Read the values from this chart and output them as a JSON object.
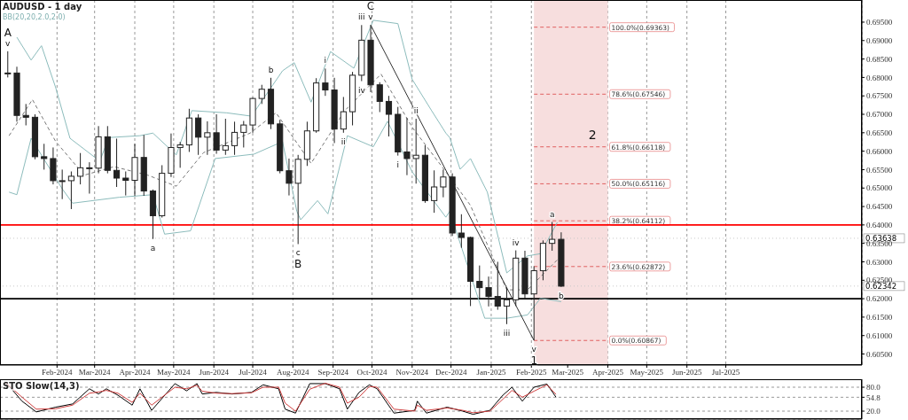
{
  "chart_data": [
    {
      "type": "candlestick",
      "title": "AUDUSD - 1 day",
      "subtitle": "BB(20,20,2.0,2.0)",
      "color": "#222222",
      "x": [
        "2023-12-25",
        "2024-01-01",
        "2024-01-08",
        "2024-01-15",
        "2024-01-22",
        "2024-01-29",
        "2024-02-05",
        "2024-02-12",
        "2024-02-19",
        "2024-02-26",
        "2024-03-04",
        "2024-03-11",
        "2024-03-18",
        "2024-03-25",
        "2024-04-01",
        "2024-04-08",
        "2024-04-15",
        "2024-04-22",
        "2024-04-29",
        "2024-05-06",
        "2024-05-13",
        "2024-05-20",
        "2024-05-27",
        "2024-06-03",
        "2024-06-10",
        "2024-06-17",
        "2024-06-24",
        "2024-07-01",
        "2024-07-08",
        "2024-07-15",
        "2024-07-22",
        "2024-07-29",
        "2024-08-05",
        "2024-08-12",
        "2024-08-19",
        "2024-08-26",
        "2024-09-02",
        "2024-09-09",
        "2024-09-16",
        "2024-09-23",
        "2024-09-30",
        "2024-10-07",
        "2024-10-14",
        "2024-10-21",
        "2024-10-28",
        "2024-11-04",
        "2024-11-11",
        "2024-11-18",
        "2024-11-25",
        "2024-12-02",
        "2024-12-09",
        "2024-12-16",
        "2024-12-23",
        "2024-12-30",
        "2025-01-06",
        "2025-01-13",
        "2025-01-20",
        "2025-01-27",
        "2025-02-03",
        "2025-02-10",
        "2025-02-17",
        "2025-02-24"
      ],
      "ohlc": [
        [
          0.681,
          0.6871,
          0.68,
          0.6812
        ],
        [
          0.6812,
          0.6829,
          0.668,
          0.6697
        ],
        [
          0.6697,
          0.6728,
          0.667,
          0.6692
        ],
        [
          0.6692,
          0.67,
          0.6578,
          0.6585
        ],
        [
          0.6585,
          0.662,
          0.655,
          0.658
        ],
        [
          0.658,
          0.661,
          0.651,
          0.652
        ],
        [
          0.652,
          0.655,
          0.647,
          0.652
        ],
        [
          0.652,
          0.6545,
          0.6443,
          0.6532
        ],
        [
          0.6532,
          0.6595,
          0.651,
          0.6555
        ],
        [
          0.6555,
          0.657,
          0.6485,
          0.6554
        ],
        [
          0.6554,
          0.6668,
          0.654,
          0.6639
        ],
        [
          0.6639,
          0.6668,
          0.654,
          0.6548
        ],
        [
          0.6548,
          0.6634,
          0.6503,
          0.6527
        ],
        [
          0.6527,
          0.6545,
          0.648,
          0.6521
        ],
        [
          0.6521,
          0.662,
          0.6479,
          0.6583
        ],
        [
          0.6583,
          0.6644,
          0.6479,
          0.6492
        ],
        [
          0.6492,
          0.6496,
          0.6362,
          0.6425
        ],
        [
          0.6425,
          0.6562,
          0.642,
          0.654
        ],
        [
          0.654,
          0.6648,
          0.653,
          0.661
        ],
        [
          0.661,
          0.6625,
          0.6555,
          0.6617
        ],
        [
          0.6617,
          0.6715,
          0.6598,
          0.669
        ],
        [
          0.669,
          0.67,
          0.659,
          0.6638
        ],
        [
          0.6638,
          0.6681,
          0.659,
          0.665
        ],
        [
          0.665,
          0.67,
          0.6593,
          0.6603
        ],
        [
          0.6603,
          0.6688,
          0.659,
          0.6615
        ],
        [
          0.6615,
          0.668,
          0.659,
          0.6651
        ],
        [
          0.6651,
          0.6682,
          0.661,
          0.6671
        ],
        [
          0.6671,
          0.6745,
          0.665,
          0.6743
        ],
        [
          0.6743,
          0.678,
          0.6728,
          0.6768
        ],
        [
          0.6768,
          0.6799,
          0.666,
          0.6674
        ],
        [
          0.6674,
          0.6685,
          0.654,
          0.6547
        ],
        [
          0.6547,
          0.658,
          0.648,
          0.6513
        ],
        [
          0.6513,
          0.659,
          0.6348,
          0.6578
        ],
        [
          0.6578,
          0.668,
          0.656,
          0.6655
        ],
        [
          0.6655,
          0.6798,
          0.665,
          0.6785
        ],
        [
          0.6785,
          0.6824,
          0.675,
          0.6766
        ],
        [
          0.6766,
          0.6799,
          0.6622,
          0.666
        ],
        [
          0.666,
          0.6747,
          0.665,
          0.6707
        ],
        [
          0.6707,
          0.6815,
          0.667,
          0.6806
        ],
        [
          0.6806,
          0.6942,
          0.679,
          0.6901
        ],
        [
          0.6901,
          0.6942,
          0.676,
          0.678
        ],
        [
          0.678,
          0.6787,
          0.6706,
          0.6735
        ],
        [
          0.6735,
          0.675,
          0.664,
          0.67
        ],
        [
          0.67,
          0.672,
          0.6588,
          0.6598
        ],
        [
          0.6598,
          0.669,
          0.6535,
          0.658
        ],
        [
          0.658,
          0.6688,
          0.6512,
          0.6589
        ],
        [
          0.6589,
          0.6616,
          0.646,
          0.6466
        ],
        [
          0.6466,
          0.6548,
          0.6433,
          0.6503
        ],
        [
          0.6503,
          0.655,
          0.6475,
          0.653
        ],
        [
          0.653,
          0.654,
          0.637,
          0.6378
        ],
        [
          0.6378,
          0.6429,
          0.6338,
          0.6366
        ],
        [
          0.6366,
          0.6368,
          0.618,
          0.6247
        ],
        [
          0.6247,
          0.629,
          0.62,
          0.623
        ],
        [
          0.623,
          0.626,
          0.6179,
          0.6206
        ],
        [
          0.6206,
          0.63,
          0.617,
          0.618
        ],
        [
          0.618,
          0.623,
          0.6131,
          0.6197
        ],
        [
          0.6197,
          0.6331,
          0.618,
          0.631
        ],
        [
          0.631,
          0.633,
          0.62,
          0.6213
        ],
        [
          0.6213,
          0.6288,
          0.6087,
          0.6276
        ],
        [
          0.6276,
          0.6358,
          0.625,
          0.635
        ],
        [
          0.635,
          0.6408,
          0.633,
          0.6361
        ],
        [
          0.6361,
          0.638,
          0.6232,
          0.6234
        ]
      ],
      "series": [
        {
          "type": "line",
          "color": "#8cbcbc",
          "line_style": "solid",
          "x": [
            "2024-01-01",
            "2024-01-12",
            "2024-01-20",
            "2024-01-31",
            "2024-02-11",
            "2024-03-05",
            "2024-03-12",
            "2024-04-05",
            "2024-04-15",
            "2024-05-03",
            "2024-05-15",
            "2024-06-11",
            "2024-06-30",
            "2024-07-24",
            "2024-08-02",
            "2024-08-15",
            "2024-08-30",
            "2024-09-17",
            "2024-10-02",
            "2024-10-21",
            "2024-11-01",
            "2024-11-16",
            "2024-11-27",
            "2024-11-30",
            "2024-12-08",
            "2024-12-16",
            "2024-12-29",
            "2025-01-13",
            "2025-01-29",
            "2025-02-08",
            "2025-02-21"
          ],
          "values": [
            0.6909,
            0.6847,
            0.6886,
            0.6772,
            0.6635,
            0.6573,
            0.6637,
            0.6642,
            0.6649,
            0.659,
            0.671,
            0.6704,
            0.6695,
            0.6818,
            0.684,
            0.6733,
            0.687,
            0.6825,
            0.6955,
            0.6946,
            0.6795,
            0.671,
            0.6649,
            0.6637,
            0.6551,
            0.658,
            0.6489,
            0.627,
            0.6316,
            0.6322,
            0.6407
          ]
        },
        {
          "type": "line",
          "color": "#777777",
          "line_style": "dashed",
          "x": [
            "2023-12-26",
            "2024-01-13",
            "2024-01-31",
            "2024-02-22",
            "2024-03-16",
            "2024-04-11",
            "2024-05-03",
            "2024-05-24",
            "2024-06-29",
            "2024-07-19",
            "2024-08-15",
            "2024-09-10",
            "2024-10-08",
            "2024-11-01",
            "2024-11-27",
            "2024-12-16",
            "2025-01-13",
            "2025-01-29",
            "2025-02-24"
          ],
          "values": [
            0.6642,
            0.674,
            0.6626,
            0.6535,
            0.6558,
            0.6535,
            0.6505,
            0.6596,
            0.6649,
            0.6704,
            0.6567,
            0.671,
            0.6809,
            0.6665,
            0.6544,
            0.6453,
            0.6224,
            0.6224,
            0.6316
          ]
        },
        {
          "type": "line",
          "color": "#8cbcbc",
          "line_style": "solid",
          "x": [
            "2023-12-26",
            "2024-01-01",
            "2024-01-12",
            "2024-02-05",
            "2024-02-13",
            "2024-03-20",
            "2024-04-15",
            "2024-04-24",
            "2024-05-14",
            "2024-06-02",
            "2024-07-02",
            "2024-07-24",
            "2024-08-04",
            "2024-08-07",
            "2024-08-20",
            "2024-08-28",
            "2024-09-12",
            "2024-10-02",
            "2024-10-13",
            "2024-11-01",
            "2024-11-27",
            "2024-11-30",
            "2024-12-27",
            "2025-01-13",
            "2025-01-29",
            "2025-02-08",
            "2025-02-24"
          ],
          "values": [
            0.6489,
            0.6482,
            0.6635,
            0.6498,
            0.6459,
            0.6475,
            0.6482,
            0.6375,
            0.6384,
            0.658,
            0.6592,
            0.6626,
            0.6437,
            0.6414,
            0.6466,
            0.643,
            0.6642,
            0.6612,
            0.6681,
            0.6544,
            0.6421,
            0.6437,
            0.6147,
            0.6147,
            0.6156,
            0.6201,
            0.6192
          ]
        },
        {
          "type": "line",
          "color": "#333333",
          "line_style": "solid",
          "x": [
            "2024-09-30",
            "2025-02-03"
          ],
          "values": [
            0.6942,
            0.6087
          ]
        }
      ],
      "xlim": [
        "2023-12-19",
        "2025-10-14"
      ],
      "xticks": [
        {
          "value": "2024-02-01",
          "label": "Feb-2024"
        },
        {
          "value": "2024-03-01",
          "label": "Mar-2024"
        },
        {
          "value": "2024-04-01",
          "label": "Apr-2024"
        },
        {
          "value": "2024-05-01",
          "label": "May-2024"
        },
        {
          "value": "2024-06-01",
          "label": "Jun-2024"
        },
        {
          "value": "2024-07-01",
          "label": "Jul-2024"
        },
        {
          "value": "2024-08-01",
          "label": "Aug-2024"
        },
        {
          "value": "2024-09-01",
          "label": "Sep-2024"
        },
        {
          "value": "2024-10-01",
          "label": "Oct-2024"
        },
        {
          "value": "2024-11-01",
          "label": "Nov-2024"
        },
        {
          "value": "2024-12-01",
          "label": "Dec-2024"
        },
        {
          "value": "2025-01-01",
          "label": "Jan-2025"
        },
        {
          "value": "2025-02-01",
          "label": "Feb-2025"
        },
        {
          "value": "2025-03-01",
          "label": "Mar-2025"
        },
        {
          "value": "2025-04-01",
          "label": "Apr-2025"
        },
        {
          "value": "2025-05-01",
          "label": "May-2025"
        },
        {
          "value": "2025-06-01",
          "label": "Jun-2025"
        },
        {
          "value": "2025-07-01",
          "label": "Jul-2025"
        }
      ],
      "ylim": [
        0.602,
        0.701
      ],
      "yticks": [
        {
          "value": 0.605,
          "label": "0.60500"
        },
        {
          "value": 0.61,
          "label": "0.61000"
        },
        {
          "value": 0.615,
          "label": "0.61500"
        },
        {
          "value": 0.62,
          "label": "0.62000"
        },
        {
          "value": 0.625,
          "label": "0.62500"
        },
        {
          "value": 0.63,
          "label": "0.63000"
        },
        {
          "value": 0.635,
          "label": "0.63500"
        },
        {
          "value": 0.64,
          "label": "0.64000"
        },
        {
          "value": 0.645,
          "label": "0.64500"
        },
        {
          "value": 0.65,
          "label": "0.65000"
        },
        {
          "value": 0.655,
          "label": "0.65500"
        },
        {
          "value": 0.66,
          "label": "0.66000"
        },
        {
          "value": 0.665,
          "label": "0.66500"
        },
        {
          "value": 0.67,
          "label": "0.67000"
        },
        {
          "value": 0.675,
          "label": "0.67500"
        },
        {
          "value": 0.68,
          "label": "0.68000"
        },
        {
          "value": 0.685,
          "label": "0.68500"
        },
        {
          "value": 0.69,
          "label": "0.69000"
        },
        {
          "value": 0.695,
          "label": "0.69500"
        }
      ],
      "grid": "x",
      "bands": [
        {
          "axis": "x",
          "from": "2025-02-03",
          "to": "2025-04-01",
          "color": "#f7dede"
        }
      ],
      "ref_lines": [
        {
          "axis": "y",
          "value": 0.69363,
          "label": "100.0%(0.69363)",
          "color": "#e06060",
          "line_style": "dashed"
        },
        {
          "axis": "y",
          "value": 0.67546,
          "label": "78.6%(0.67546)",
          "color": "#e06060",
          "line_style": "dashed"
        },
        {
          "axis": "y",
          "value": 0.66118,
          "label": "61.8%(0.66118)",
          "color": "#e06060",
          "line_style": "dashed"
        },
        {
          "axis": "y",
          "value": 0.65116,
          "label": "50.0%(0.65116)",
          "color": "#e06060",
          "line_style": "dashed"
        },
        {
          "axis": "y",
          "value": 0.64112,
          "label": "38.2%(0.64112)",
          "color": "#e06060",
          "line_style": "dashed"
        },
        {
          "axis": "y",
          "value": 0.62872,
          "label": "23.6%(0.62872)",
          "color": "#e06060",
          "line_style": "dashed"
        },
        {
          "axis": "y",
          "value": 0.60867,
          "label": "0.0%(0.60867)",
          "color": "#e06060",
          "line_style": "dashed"
        },
        {
          "axis": "y",
          "value": 0.64,
          "color": "#ff0000",
          "line_style": "solid"
        },
        {
          "axis": "y",
          "value": 0.62,
          "color": "#000000",
          "line_style": "solid"
        },
        {
          "axis": "y",
          "value": 0.63638,
          "label": "0.63638",
          "color": "#c8c8c8",
          "line_style": "dotted"
        },
        {
          "axis": "y",
          "value": 0.62342,
          "label": "0.62342",
          "color": "#c8c8c8",
          "line_style": "dotted"
        }
      ],
      "annotations": [
        {
          "text": "v",
          "x": "2023-12-25",
          "y": 0.6871
        },
        {
          "text": "A",
          "x": "2023-12-25",
          "y": 0.6871
        },
        {
          "text": "a",
          "x": "2024-04-15",
          "y": 0.6362
        },
        {
          "text": "b",
          "x": "2024-07-15",
          "y": 0.6799
        },
        {
          "text": "c",
          "x": "2024-08-05",
          "y": 0.6348
        },
        {
          "text": "B",
          "x": "2024-08-05",
          "y": 0.6348
        },
        {
          "text": "i",
          "x": "2024-08-26",
          "y": 0.6824
        },
        {
          "text": "ii",
          "x": "2024-09-09",
          "y": 0.665
        },
        {
          "text": "iii",
          "x": "2024-09-23",
          "y": 0.6942
        },
        {
          "text": "iv",
          "x": "2024-09-23",
          "y": 0.679
        },
        {
          "text": "v",
          "x": "2024-09-30",
          "y": 0.6942
        },
        {
          "text": "C",
          "x": "2024-09-30",
          "y": 0.6942
        },
        {
          "text": "i",
          "x": "2024-10-21",
          "y": 0.6588
        },
        {
          "text": "ii",
          "x": "2024-11-04",
          "y": 0.6688
        },
        {
          "text": "iii",
          "x": "2025-01-13",
          "y": 0.6131
        },
        {
          "text": "iv",
          "x": "2025-01-20",
          "y": 0.6331
        },
        {
          "text": "v",
          "x": "2025-02-03",
          "y": 0.6087
        },
        {
          "text": "1",
          "x": "2025-02-03",
          "y": 0.6087
        },
        {
          "text": "a",
          "x": "2025-02-17",
          "y": 0.6408
        },
        {
          "text": "b",
          "x": "2025-02-24",
          "y": 0.6232
        },
        "2"
      ]
    },
    {
      "type": "line",
      "title": "STO Slow(14,3)",
      "tick_labels": "y",
      "grid": "y",
      "xlim": [
        "2023-12-19",
        "2025-10-14"
      ],
      "ylim": [
        0,
        100
      ],
      "yticks": [
        {
          "value": 20,
          "label": "20.0"
        },
        {
          "value": 54.8,
          "label": "54.8"
        },
        {
          "value": 80,
          "label": "80.0"
        }
      ],
      "series": [
        {
          "color": "#000000",
          "x": [
            "2023-12-23",
            "2024-01-05",
            "2024-01-16",
            "2024-01-31",
            "2024-02-13",
            "2024-02-26",
            "2024-03-04",
            "2024-03-10",
            "2024-03-19",
            "2024-03-30",
            "2024-04-05",
            "2024-04-14",
            "2024-05-02",
            "2024-05-11",
            "2024-05-19",
            "2024-05-23",
            "2024-06-03",
            "2024-06-15",
            "2024-06-30",
            "2024-07-09",
            "2024-07-21",
            "2024-07-26",
            "2024-08-03",
            "2024-08-14",
            "2024-08-26",
            "2024-09-06",
            "2024-09-12",
            "2024-09-21",
            "2024-09-29",
            "2024-10-05",
            "2024-10-18",
            "2024-11-03",
            "2024-11-05",
            "2024-11-12",
            "2024-11-28",
            "2024-12-10",
            "2024-12-18",
            "2024-12-31",
            "2025-01-10",
            "2025-01-17",
            "2025-01-25",
            "2025-02-03",
            "2025-02-13",
            "2025-02-20"
          ],
          "values": [
            94,
            45,
            18,
            30,
            38,
            76,
            63,
            76,
            60,
            35,
            76,
            22,
            89,
            71,
            89,
            63,
            67,
            63,
            67,
            86,
            76,
            25,
            15,
            89,
            89,
            76,
            25,
            67,
            86,
            76,
            15,
            22,
            45,
            15,
            30,
            20,
            12,
            22,
            60,
            80,
            45,
            80,
            88,
            55
          ]
        },
        {
          "color": "#d04040",
          "x": [
            "2023-12-23",
            "2024-01-05",
            "2024-01-16",
            "2024-01-31",
            "2024-02-13",
            "2024-02-26",
            "2024-03-04",
            "2024-03-10",
            "2024-03-19",
            "2024-03-30",
            "2024-04-05",
            "2024-04-14",
            "2024-05-02",
            "2024-05-11",
            "2024-05-19",
            "2024-05-23",
            "2024-06-03",
            "2024-06-15",
            "2024-06-30",
            "2024-07-09",
            "2024-07-21",
            "2024-07-26",
            "2024-08-03",
            "2024-08-14",
            "2024-08-26",
            "2024-09-06",
            "2024-09-12",
            "2024-09-21",
            "2024-09-29",
            "2024-10-05",
            "2024-10-18",
            "2024-11-03",
            "2024-11-05",
            "2024-11-12",
            "2024-11-28",
            "2024-12-10",
            "2024-12-18",
            "2024-12-31",
            "2025-01-10",
            "2025-01-17",
            "2025-01-25",
            "2025-02-03",
            "2025-02-13",
            "2025-02-20"
          ],
          "values": [
            92,
            55,
            25,
            26,
            35,
            65,
            68,
            72,
            65,
            42,
            65,
            35,
            80,
            76,
            85,
            70,
            65,
            64,
            66,
            80,
            80,
            40,
            20,
            75,
            90,
            80,
            40,
            55,
            82,
            80,
            25,
            20,
            35,
            22,
            28,
            22,
            16,
            20,
            50,
            72,
            55,
            70,
            86,
            62
          ]
        }
      ]
    }
  ]
}
